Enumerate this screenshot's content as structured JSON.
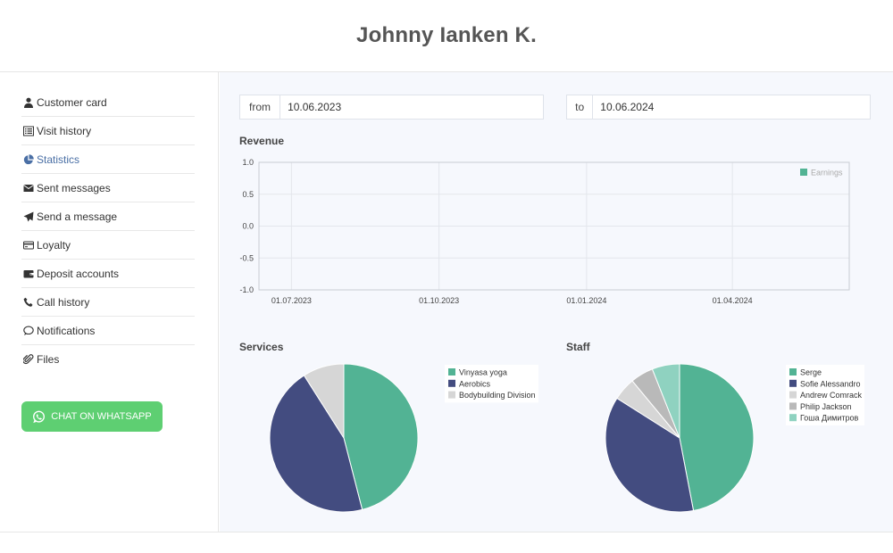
{
  "header": {
    "title": "Johnny Ianken K."
  },
  "sidebar": {
    "items": [
      {
        "label": "Customer card",
        "icon": "user-icon"
      },
      {
        "label": "Visit history",
        "icon": "list-icon"
      },
      {
        "label": "Statistics",
        "icon": "pie-chart-icon",
        "active": true
      },
      {
        "label": "Sent messages",
        "icon": "envelope-icon"
      },
      {
        "label": "Send a message",
        "icon": "paper-plane-icon"
      },
      {
        "label": "Loyalty",
        "icon": "card-icon"
      },
      {
        "label": "Deposit accounts",
        "icon": "wallet-icon"
      },
      {
        "label": "Call history",
        "icon": "phone-icon"
      },
      {
        "label": "Notifications",
        "icon": "chat-bubble-icon"
      },
      {
        "label": "Files",
        "icon": "paperclip-icon"
      }
    ],
    "whatsapp_label": "CHAT ON WHATSAPP"
  },
  "filters": {
    "from_label": "from",
    "from_value": "10.06.2023",
    "to_label": "to",
    "to_value": "10.06.2024"
  },
  "sections": {
    "revenue": "Revenue",
    "services": "Services",
    "staff": "Staff"
  },
  "colors": {
    "accent": "#4a6fa5",
    "whatsapp": "#5ecf72",
    "green": "#52b394",
    "navy": "#434c80",
    "light_gray": "#d6d6d6",
    "mid_gray": "#b9b9b9",
    "mint": "#8fd2c0"
  },
  "chart_data": [
    {
      "type": "line",
      "title": "Revenue",
      "x_ticks": [
        "01.07.2023",
        "01.10.2023",
        "01.01.2024",
        "01.04.2024"
      ],
      "y_ticks": [
        "1.0",
        "0.5",
        "0.0",
        "-0.5",
        "-1.0"
      ],
      "ylim": [
        -1,
        1
      ],
      "series": [
        {
          "name": "Earnings",
          "values": []
        }
      ],
      "legend": "top-right",
      "grid": true
    },
    {
      "type": "pie",
      "title": "Services",
      "labels": [
        "Vinyasa yoga",
        "Aerobics",
        "Bodybuilding Division"
      ],
      "values": [
        46,
        45,
        9
      ],
      "colors": [
        "#52b394",
        "#434c80",
        "#d6d6d6"
      ],
      "legend": "right"
    },
    {
      "type": "pie",
      "title": "Staff",
      "labels": [
        "Serge",
        "Sofie Alessandro",
        "Andrew Comrack",
        "Philip Jackson",
        "Гоша Димитров"
      ],
      "values": [
        47,
        37,
        5,
        5,
        6
      ],
      "colors": [
        "#52b394",
        "#434c80",
        "#d6d6d6",
        "#b9b9b9",
        "#8fd2c0"
      ],
      "legend": "right"
    }
  ]
}
